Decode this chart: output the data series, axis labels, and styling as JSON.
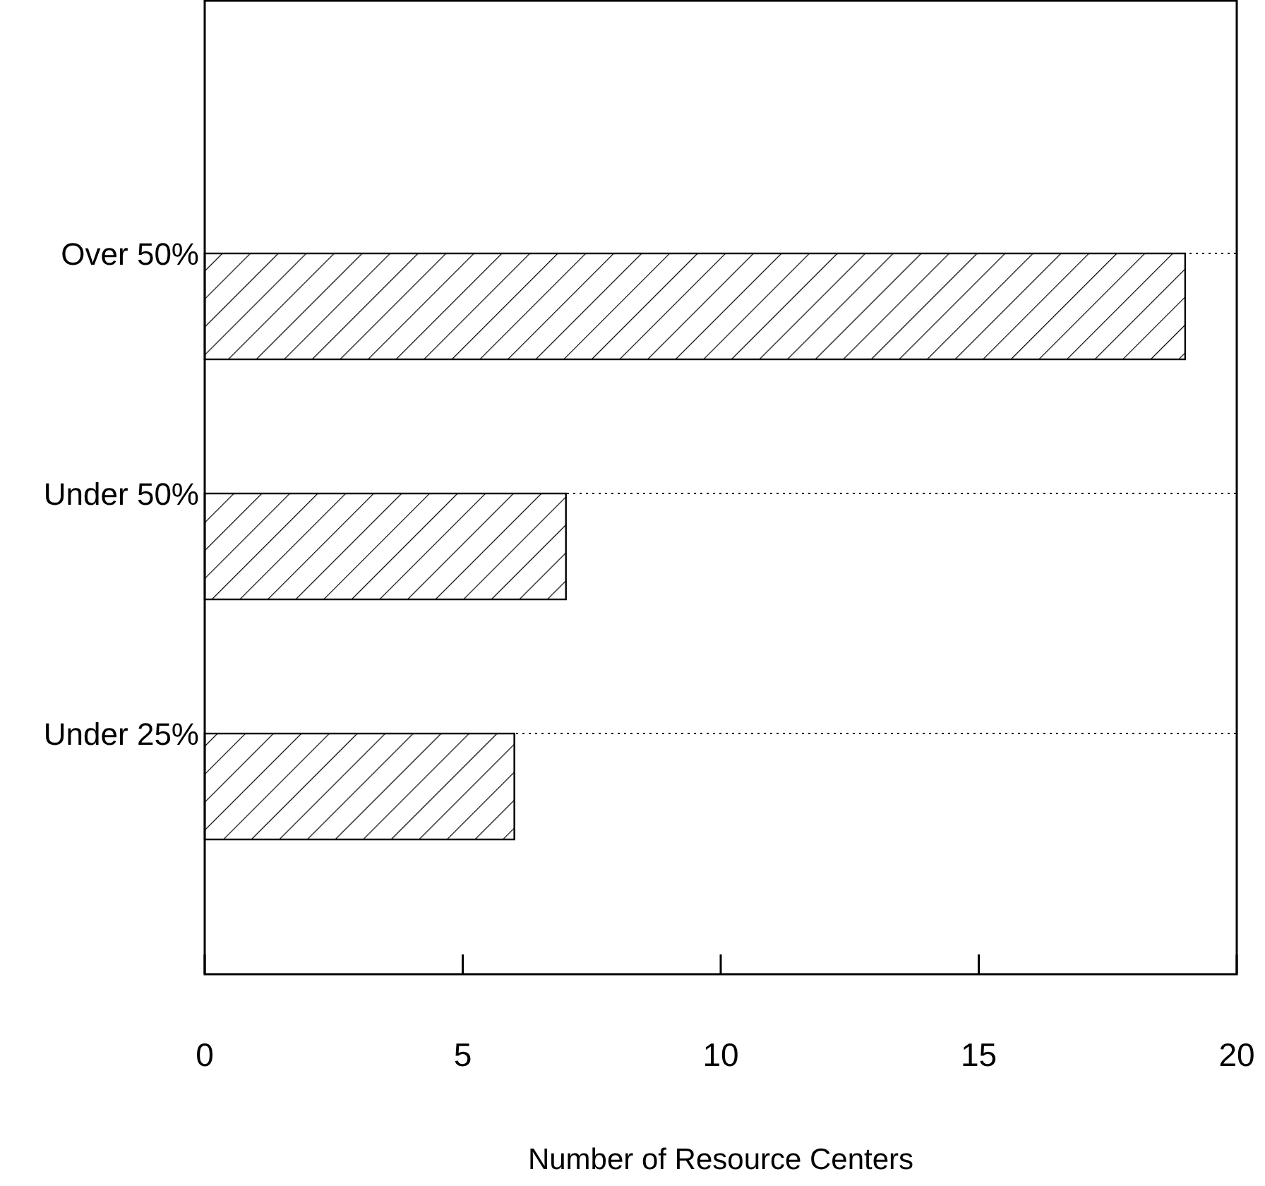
{
  "chart_data": {
    "type": "bar",
    "orientation": "horizontal",
    "xlabel": "Number of Resource Centers",
    "categories": [
      "Over 50%",
      "Under 50%",
      "Under 25%"
    ],
    "values": [
      19,
      7,
      6
    ],
    "color": "#000000",
    "xlim": [
      0,
      20
    ],
    "xticks": [
      0,
      5,
      10,
      15,
      20
    ],
    "grid": "y"
  }
}
